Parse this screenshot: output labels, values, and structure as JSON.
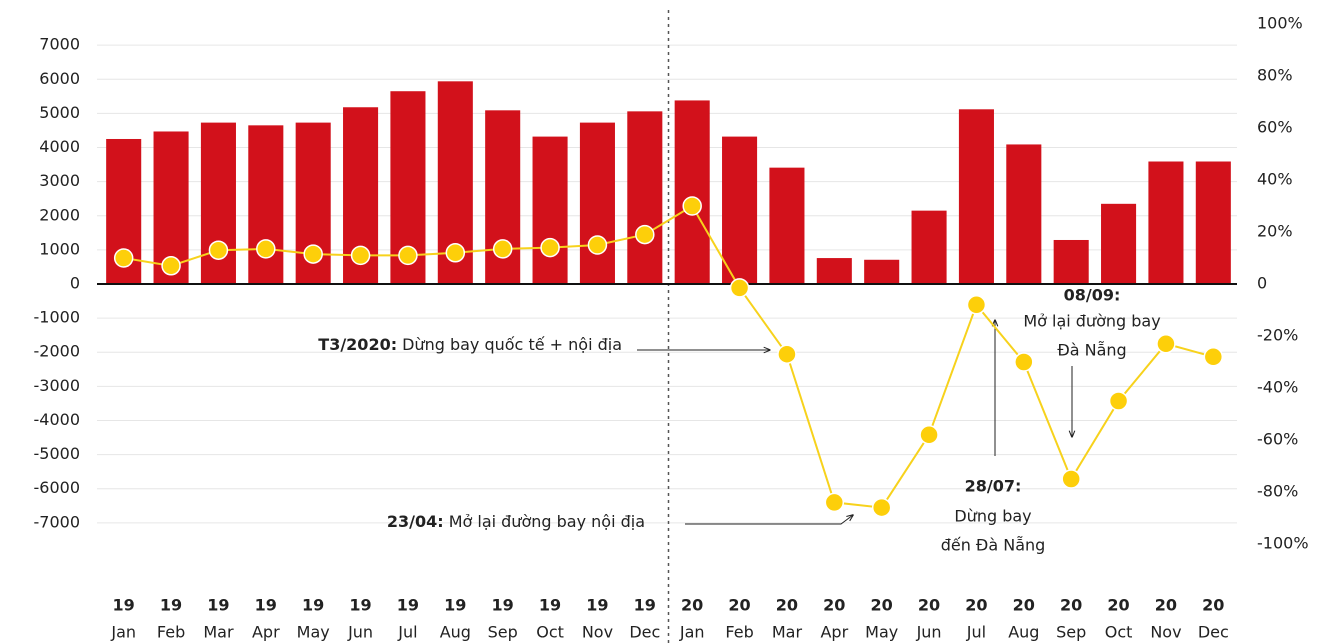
{
  "chart_data": {
    "type": "bar_line",
    "categories": [
      "Jan",
      "Feb",
      "Mar",
      "Apr",
      "May",
      "Jun",
      "Jul",
      "Aug",
      "Sep",
      "Oct",
      "Nov",
      "Dec",
      "Jan",
      "Feb",
      "Mar",
      "Apr",
      "May",
      "Jun",
      "Jul",
      "Aug",
      "Sep",
      "Oct",
      "Nov",
      "Dec"
    ],
    "category_years": [
      "19",
      "19",
      "19",
      "19",
      "19",
      "19",
      "19",
      "19",
      "19",
      "19",
      "19",
      "19",
      "20",
      "20",
      "20",
      "20",
      "20",
      "20",
      "20",
      "20",
      "20",
      "20",
      "20",
      "20"
    ],
    "series": [
      {
        "type": "bar",
        "color": "#d2111b",
        "values": [
          4250,
          4470,
          4730,
          4650,
          4730,
          5180,
          5650,
          5940,
          5090,
          4320,
          4730,
          5060,
          5380,
          4320,
          3410,
          760,
          710,
          2150,
          5120,
          4090,
          1290,
          2350,
          3590,
          3590
        ]
      },
      {
        "type": "line",
        "axis": "y2",
        "color": "#f7d21c",
        "values": [
          10,
          7,
          13,
          13.5,
          11.5,
          11,
          11,
          12,
          13.5,
          14,
          15,
          19,
          30,
          -1.5,
          -27,
          -84,
          -86,
          -58,
          -8,
          -30,
          -75,
          -45,
          -23,
          -28
        ]
      }
    ],
    "ylim": [
      -7620,
      7620
    ],
    "yticks": [
      7000,
      6000,
      5000,
      4000,
      3000,
      2000,
      1000,
      0,
      -1000,
      -2000,
      -3000,
      -4000,
      -5000,
      -6000,
      -7000
    ],
    "y2lim": [
      -100,
      100
    ],
    "y2ticks": [
      {
        "value": 100,
        "label": "100%"
      },
      {
        "value": 80,
        "label": "80%"
      },
      {
        "value": 60,
        "label": "60%"
      },
      {
        "value": 40,
        "label": "40%"
      },
      {
        "value": 20,
        "label": "20%"
      },
      0,
      {
        "value": -20,
        "label": "-20%"
      },
      {
        "value": -40,
        "label": "-40%"
      },
      {
        "value": -60,
        "label": "-60%"
      },
      {
        "value": -80,
        "label": "-80%"
      },
      {
        "value": -100,
        "label": "-100%"
      }
    ],
    "grid": true,
    "annotations": [
      {
        "label": "T3/2020:",
        "text": "Dừng bay quốc tế + nội địa"
      },
      {
        "label": "23/04:",
        "text": "Mở lại đường bay nội địa"
      },
      {
        "label": "28/07:",
        "lines": [
          "Dừng bay",
          "đến Đà Nẵng"
        ]
      },
      {
        "label": "08/09:",
        "lines": [
          "Mở lại đường bay",
          "Đà Nẵng"
        ]
      }
    ]
  }
}
